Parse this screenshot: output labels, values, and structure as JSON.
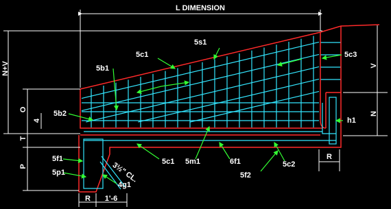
{
  "labels": {
    "l_dimension": "L DIMENSION",
    "s1": "5s1",
    "c1_top": "5c1",
    "b1": "5b1",
    "c3": "5c3",
    "v": "V",
    "n_plus_v": "N+V",
    "o": "O",
    "four": "4",
    "b2": "5b2",
    "n": "N",
    "h1": "h1",
    "t": "T",
    "p": "P",
    "f1_left": "5f1",
    "p1": "5p1",
    "cl": "3½\" CL.",
    "g1": "4g1",
    "c1_bottom": "5c1",
    "m1": "5m1",
    "f1_right": "6f1",
    "c2": "5c2",
    "f2": "5f2",
    "r_right": "R",
    "r_left": "R",
    "one_six": "1'-6"
  }
}
